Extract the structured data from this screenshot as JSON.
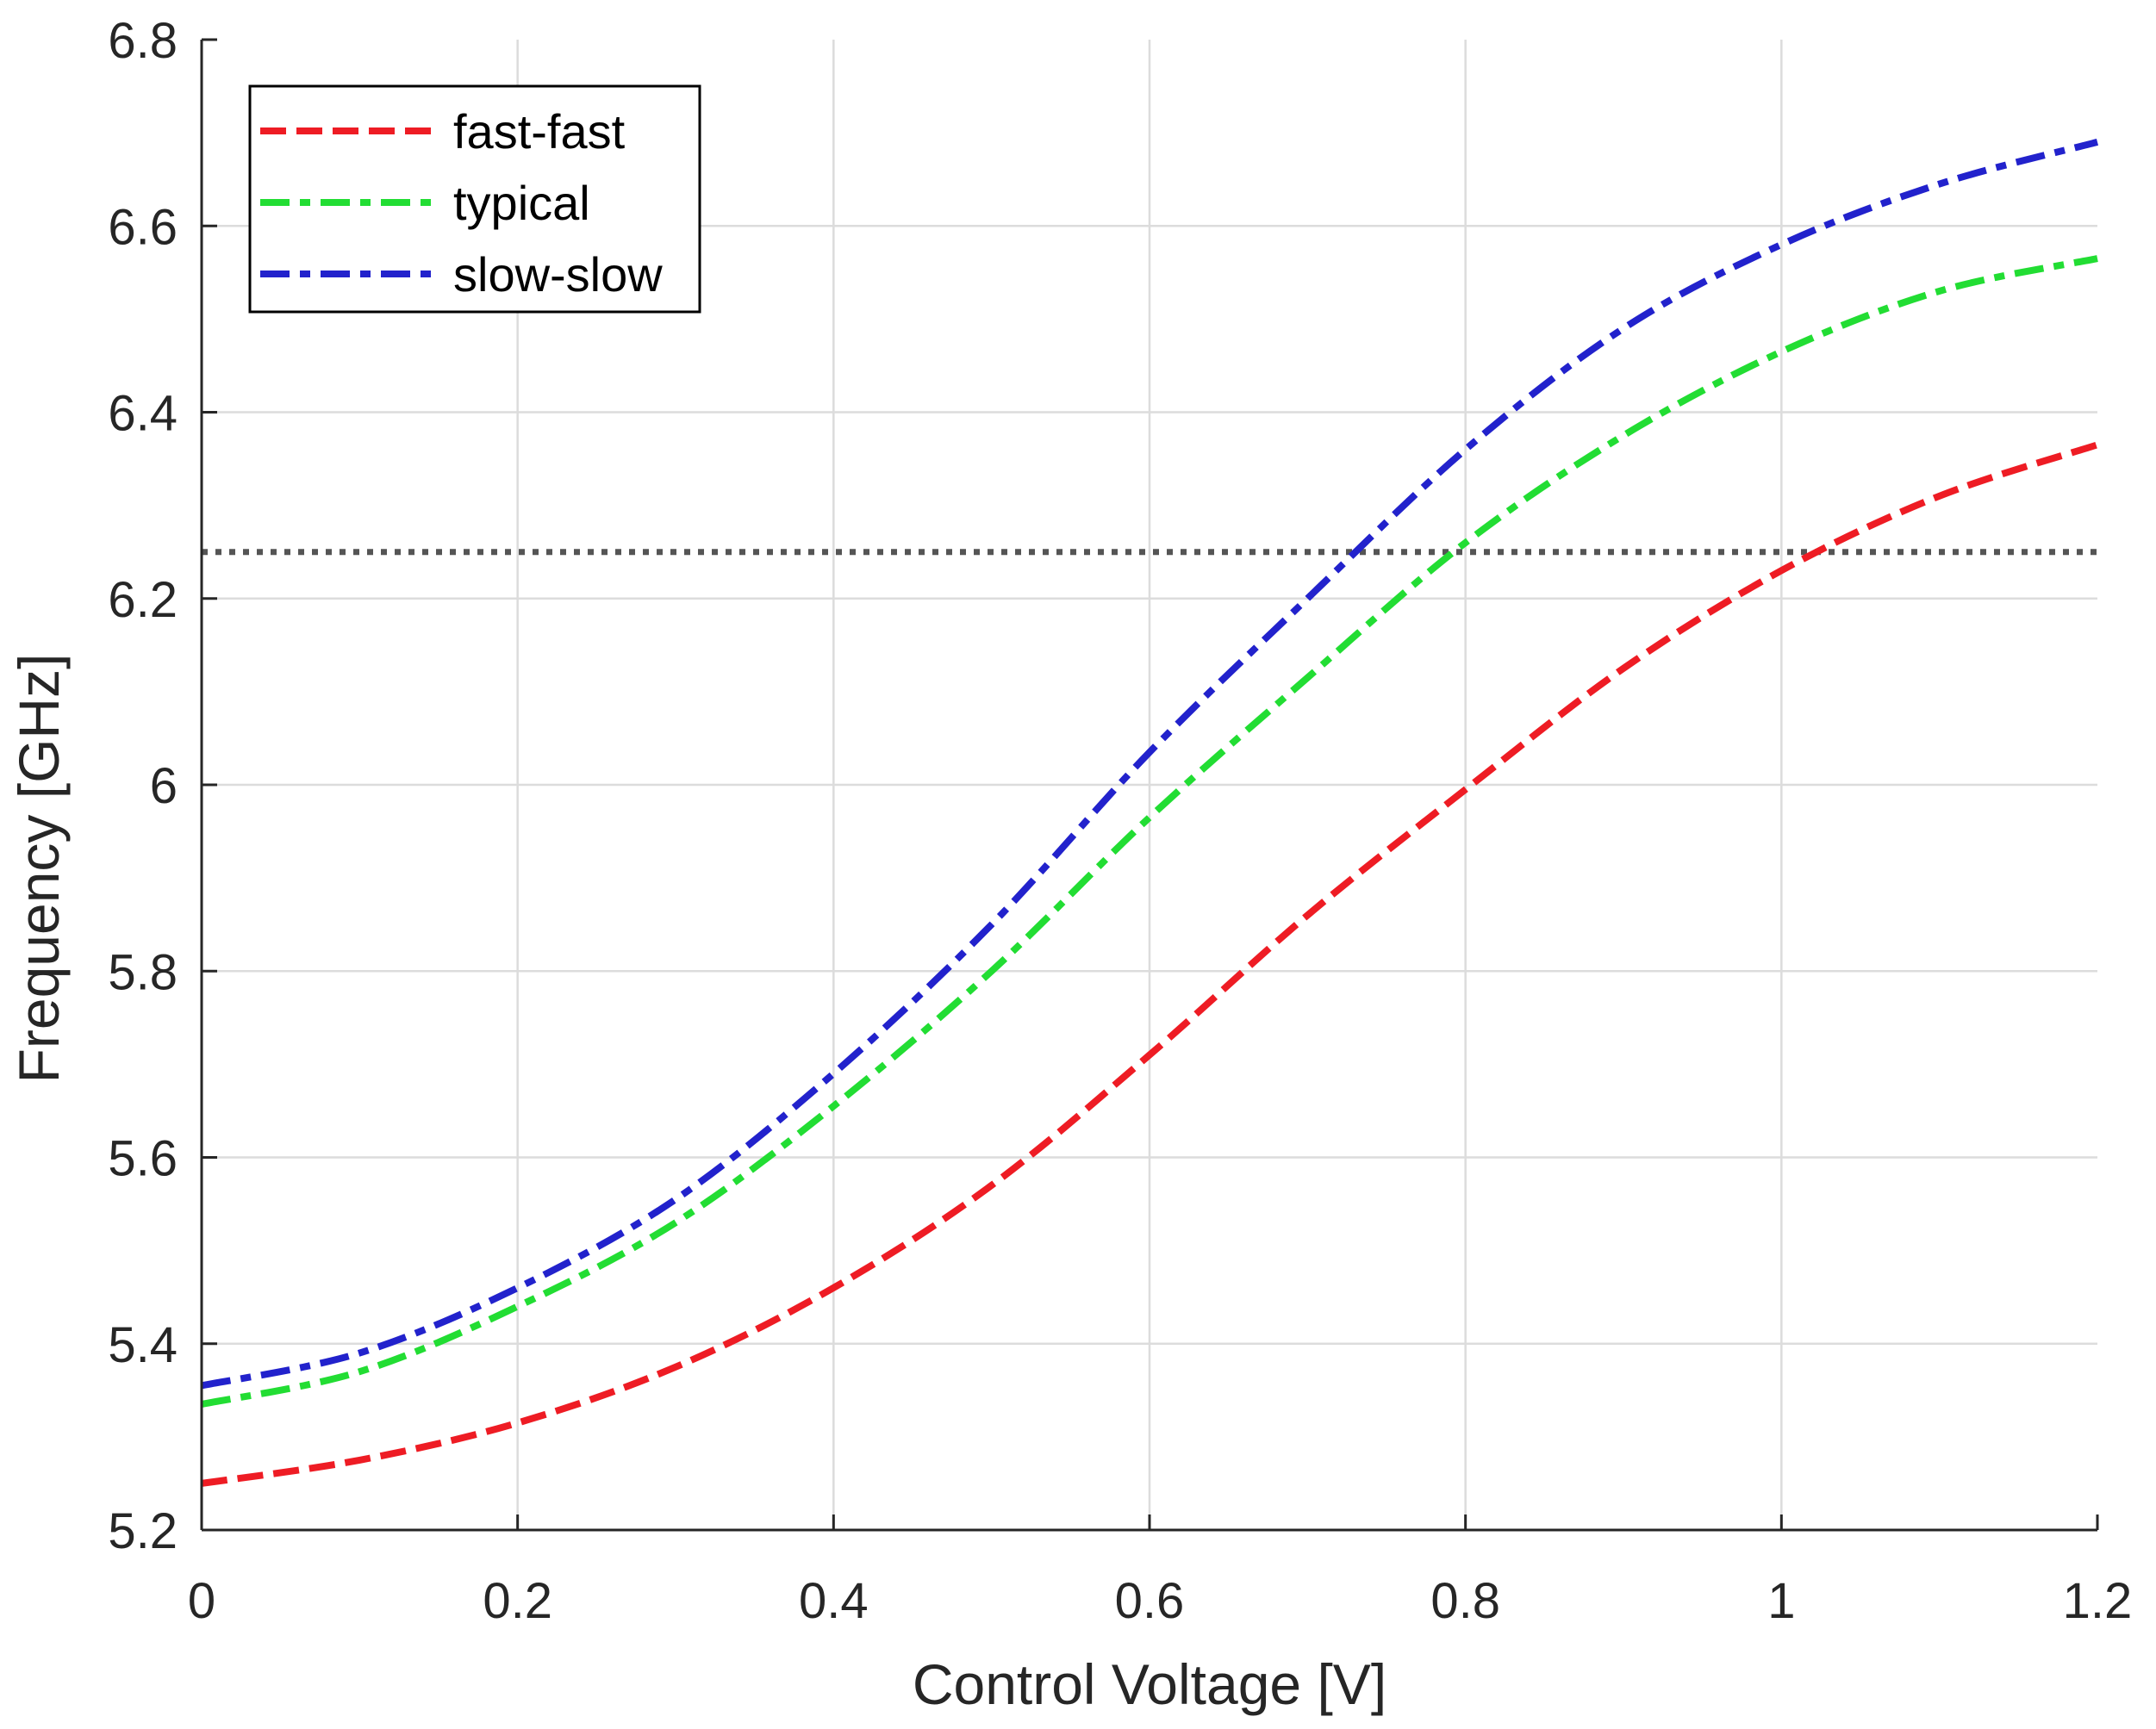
{
  "chart_data": {
    "type": "line",
    "title": "",
    "xlabel": "Control Voltage [V]",
    "ylabel": "Frequency [GHz]",
    "xlim": [
      0,
      1.2
    ],
    "ylim": [
      5.2,
      6.8
    ],
    "xticks": [
      0,
      0.2,
      0.4,
      0.6,
      0.8,
      1,
      1.2
    ],
    "xtick_labels": [
      "0",
      "0.2",
      "0.4",
      "0.6",
      "0.8",
      "1",
      "1.2"
    ],
    "yticks": [
      5.2,
      5.4,
      5.6,
      5.8,
      6.0,
      6.2,
      6.4,
      6.6,
      6.8
    ],
    "ytick_labels": [
      "5.2",
      "5.4",
      "5.6",
      "5.8",
      "6",
      "6.2",
      "6.4",
      "6.6",
      "6.8"
    ],
    "grid": true,
    "legend_position": "top-left",
    "x": [
      0,
      0.1,
      0.2,
      0.3,
      0.4,
      0.5,
      0.6,
      0.7,
      0.8,
      0.9,
      1.0,
      1.1,
      1.2
    ],
    "series": [
      {
        "name": "fast-fast",
        "color": "#ee1c24",
        "dash": "dash",
        "values": [
          5.25,
          5.275,
          5.315,
          5.375,
          5.46,
          5.57,
          5.71,
          5.86,
          5.995,
          6.125,
          6.23,
          6.31,
          6.365
        ]
      },
      {
        "name": "typical",
        "color": "#22dd33",
        "dash": "dashdot",
        "values": [
          5.335,
          5.37,
          5.44,
          5.53,
          5.655,
          5.8,
          5.965,
          6.115,
          6.26,
          6.375,
          6.465,
          6.53,
          6.565
        ]
      },
      {
        "name": "slow-slow",
        "color": "#2222cc",
        "dash": "dashdot",
        "values": [
          5.355,
          5.39,
          5.46,
          5.555,
          5.69,
          5.85,
          6.035,
          6.2,
          6.36,
          6.49,
          6.58,
          6.645,
          6.69
        ]
      }
    ],
    "reference_line": {
      "type": "horizontal",
      "y": 6.25,
      "style": "dotted",
      "color": "#555555"
    }
  }
}
